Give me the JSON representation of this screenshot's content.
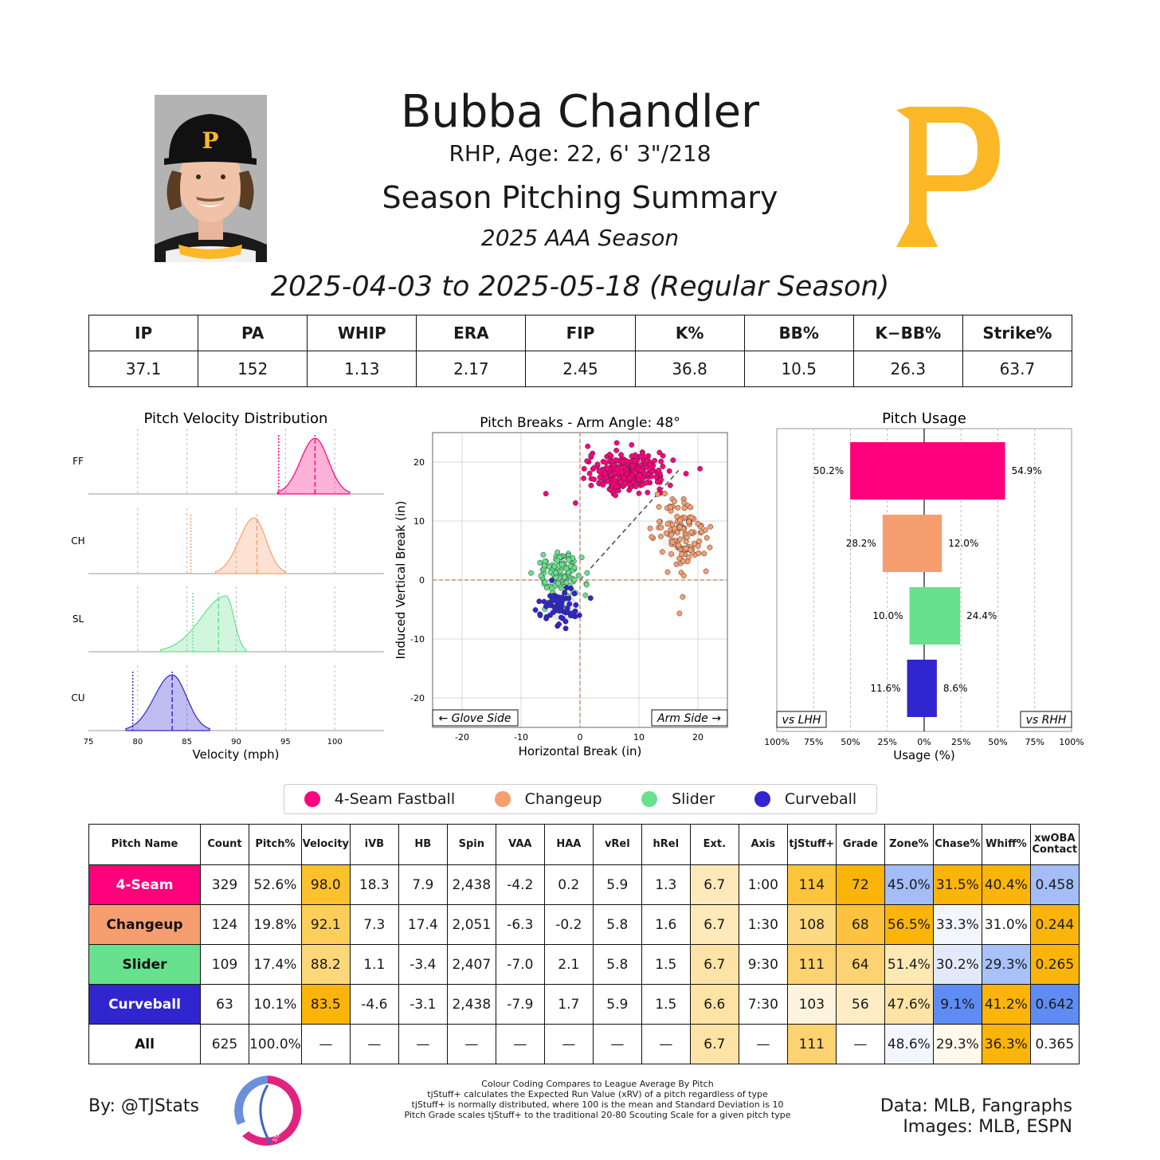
{
  "header": {
    "name": "Bubba Chandler",
    "bio": "RHP, Age: 22, 6' 3\"/218",
    "title": "Season Pitching Summary",
    "season": "2025 AAA Season",
    "dates": "2025-04-03 to 2025-05-18 (Regular Season)",
    "team_logo_letter": "P",
    "team_color": "#FDB827"
  },
  "stats": {
    "headers": [
      "IP",
      "PA",
      "WHIP",
      "ERA",
      "FIP",
      "K%",
      "BB%",
      "K−BB%",
      "Strike%"
    ],
    "values": [
      "37.1",
      "152",
      "1.13",
      "2.17",
      "2.45",
      "36.8",
      "10.5",
      "26.3",
      "63.7"
    ]
  },
  "pitches": [
    {
      "key": "FF",
      "name": "4-Seam Fastball",
      "color": "#FF007D"
    },
    {
      "key": "CH",
      "name": "Changeup",
      "color": "#F79E70"
    },
    {
      "key": "SL",
      "name": "Slider",
      "color": "#67E18D"
    },
    {
      "key": "CU",
      "name": "Curveball",
      "color": "#3025CE"
    }
  ],
  "chart_data": [
    {
      "type": "area",
      "title": "Pitch Velocity Distribution",
      "xlabel": "Velocity (mph)",
      "xlim": [
        75,
        105
      ],
      "xticks": [
        75,
        80,
        85,
        90,
        95,
        100
      ],
      "rows": [
        {
          "label": "FF",
          "range": [
            94.2,
            101.5
          ],
          "mean": 98.0,
          "league_mean": 94.3,
          "peak": 98.0
        },
        {
          "label": "CH",
          "range": [
            87.9,
            95.0
          ],
          "mean": 92.1,
          "league_mean": 85.4,
          "peak": 91.8
        },
        {
          "label": "SL",
          "range": [
            82.3,
            91.0
          ],
          "mean": 88.2,
          "league_mean": 85.6,
          "peak": 89.0
        },
        {
          "label": "CU",
          "range": [
            78.8,
            87.3
          ],
          "mean": 83.5,
          "league_mean": 79.5,
          "peak": 83.5
        }
      ]
    },
    {
      "type": "scatter",
      "title": "Pitch Breaks - Arm Angle: 48°",
      "xlabel": "Horizontal Break (in)",
      "ylabel": "Induced Vertical Break (in)",
      "xlim": [
        -25,
        25
      ],
      "ylim": [
        -25,
        25
      ],
      "xticks": [
        -20,
        -10,
        0,
        10,
        20
      ],
      "yticks": [
        -20,
        -10,
        0,
        10,
        20
      ],
      "arm_angle_deg": 48,
      "left_label": "← Glove Side",
      "right_label": "Arm Side →",
      "clusters": [
        {
          "pitch": "FF",
          "center": [
            7.9,
            18.3
          ],
          "spread": [
            3.2,
            1.5
          ],
          "count": 329
        },
        {
          "pitch": "CH",
          "center": [
            17.4,
            7.3
          ],
          "spread": [
            2.3,
            3.2
          ],
          "count": 124
        },
        {
          "pitch": "SL",
          "center": [
            -3.4,
            1.1
          ],
          "spread": [
            2.0,
            2.3
          ],
          "count": 109
        },
        {
          "pitch": "CU",
          "center": [
            -3.1,
            -4.6
          ],
          "spread": [
            1.8,
            1.6
          ],
          "count": 63
        }
      ]
    },
    {
      "type": "bar",
      "title": "Pitch Usage",
      "xlabel": "Usage (%)",
      "xticks": [
        "100%",
        "75%",
        "50%",
        "25%",
        "0%",
        "25%",
        "50%",
        "75%",
        "100%"
      ],
      "left_label": "vs LHH",
      "right_label": "vs RHH",
      "categories": [
        "FF",
        "CH",
        "SL",
        "CU"
      ],
      "series": [
        {
          "name": "vs LHH",
          "values": [
            50.2,
            28.2,
            10.0,
            11.6
          ]
        },
        {
          "name": "vs RHH",
          "values": [
            54.9,
            12.0,
            24.4,
            8.6
          ]
        }
      ]
    },
    {
      "type": "table",
      "columns": [
        "Pitch Name",
        "Count",
        "Pitch%",
        "Velocity",
        "iVB",
        "HB",
        "Spin",
        "VAA",
        "HAA",
        "vRel",
        "hRel",
        "Ext.",
        "Axis",
        "tjStuff+",
        "Grade",
        "Zone%",
        "Chase%",
        "Whiff%",
        "xwOBA\nContact"
      ],
      "rows": [
        [
          "4-Seam",
          "329",
          "52.6%",
          "98.0",
          "18.3",
          "7.9",
          "2,438",
          "-4.2",
          "0.2",
          "5.9",
          "1.3",
          "6.7",
          "1:00",
          "114",
          "72",
          "45.0%",
          "31.5%",
          "40.4%",
          "0.458"
        ],
        [
          "Changeup",
          "124",
          "19.8%",
          "92.1",
          "7.3",
          "17.4",
          "2,051",
          "-6.3",
          "-0.2",
          "5.8",
          "1.6",
          "6.7",
          "1:30",
          "108",
          "68",
          "56.5%",
          "33.3%",
          "31.0%",
          "0.244"
        ],
        [
          "Slider",
          "109",
          "17.4%",
          "88.2",
          "1.1",
          "-3.4",
          "2,407",
          "-7.0",
          "2.1",
          "5.8",
          "1.5",
          "6.7",
          "9:30",
          "111",
          "64",
          "51.4%",
          "30.2%",
          "29.3%",
          "0.265"
        ],
        [
          "Curveball",
          "63",
          "10.1%",
          "83.5",
          "-4.6",
          "-3.1",
          "2,438",
          "-7.9",
          "1.7",
          "5.9",
          "1.5",
          "6.6",
          "7:30",
          "103",
          "56",
          "47.6%",
          "9.1%",
          "41.2%",
          "0.642"
        ],
        [
          "All",
          "625",
          "100.0%",
          "—",
          "—",
          "—",
          "—",
          "—",
          "—",
          "—",
          "—",
          "6.7",
          "—",
          "111",
          "—",
          "48.6%",
          "29.3%",
          "36.3%",
          "0.365"
        ]
      ],
      "row_colors": [
        "#FF007D",
        "#F79E70",
        "#67E18D",
        "#3025CE",
        "#ffffff"
      ],
      "row_text_colors": [
        "#ffffff",
        "#111111",
        "#111111",
        "#ffffff",
        "#111111"
      ],
      "cell_colors": [
        [
          3,
          0,
          "#FDC12E"
        ],
        [
          3,
          1,
          "#FDCF5A"
        ],
        [
          3,
          2,
          "#FDD77A"
        ],
        [
          3,
          3,
          "#FBB40A"
        ],
        [
          11,
          0,
          "#FDE9B9"
        ],
        [
          11,
          1,
          "#FDE9B9"
        ],
        [
          11,
          2,
          "#FDE3A6"
        ],
        [
          11,
          3,
          "#FDE3A6"
        ],
        [
          11,
          4,
          "#FDE3A6"
        ],
        [
          13,
          0,
          "#FDC53B"
        ],
        [
          13,
          1,
          "#FDD982"
        ],
        [
          13,
          2,
          "#FDD270"
        ],
        [
          13,
          3,
          "#FEF4DE"
        ],
        [
          13,
          4,
          "#FDD270"
        ],
        [
          14,
          0,
          "#FBB40A"
        ],
        [
          14,
          1,
          "#FCC240"
        ],
        [
          14,
          2,
          "#FDD270"
        ],
        [
          14,
          3,
          "#FDECC4"
        ],
        [
          15,
          0,
          "#A4BDF7"
        ],
        [
          15,
          1,
          "#FBB40A"
        ],
        [
          15,
          2,
          "#FEE9B5"
        ],
        [
          15,
          3,
          "#FDE3A6"
        ],
        [
          15,
          4,
          "#F4F6FD"
        ],
        [
          16,
          0,
          "#FBB40A"
        ],
        [
          16,
          1,
          "#F4F6FD"
        ],
        [
          16,
          2,
          "#E2E9FB"
        ],
        [
          16,
          3,
          "#5E8CF2"
        ],
        [
          16,
          4,
          "#FFF9EC"
        ],
        [
          17,
          0,
          "#FBB40A"
        ],
        [
          17,
          2,
          "#A8C1F8"
        ],
        [
          17,
          3,
          "#FBB40A"
        ],
        [
          17,
          4,
          "#FBB40A"
        ],
        [
          18,
          0,
          "#A4BDF7"
        ],
        [
          18,
          1,
          "#FBB40A"
        ],
        [
          18,
          2,
          "#FBB40A"
        ],
        [
          18,
          3,
          "#5E8CF2"
        ]
      ]
    }
  ],
  "legend": [
    "4-Seam Fastball",
    "Changeup",
    "Slider",
    "Curveball"
  ],
  "footer": {
    "by": "By: @TJStats",
    "notes": [
      "Colour Coding Compares to League Average By Pitch",
      "tjStuff+ calculates the Expected Run Value (xRV) of a pitch regardless of type",
      "tjStuff+ is normally distributed, where 100 is the mean and Standard Deviation is 10",
      "Pitch Grade scales tjStuff+ to the traditional 20-80 Scouting Scale for a given pitch type"
    ],
    "data_credit": "Data: MLB, Fangraphs",
    "image_credit": "Images: MLB, ESPN",
    "logo_text": "STATS"
  }
}
